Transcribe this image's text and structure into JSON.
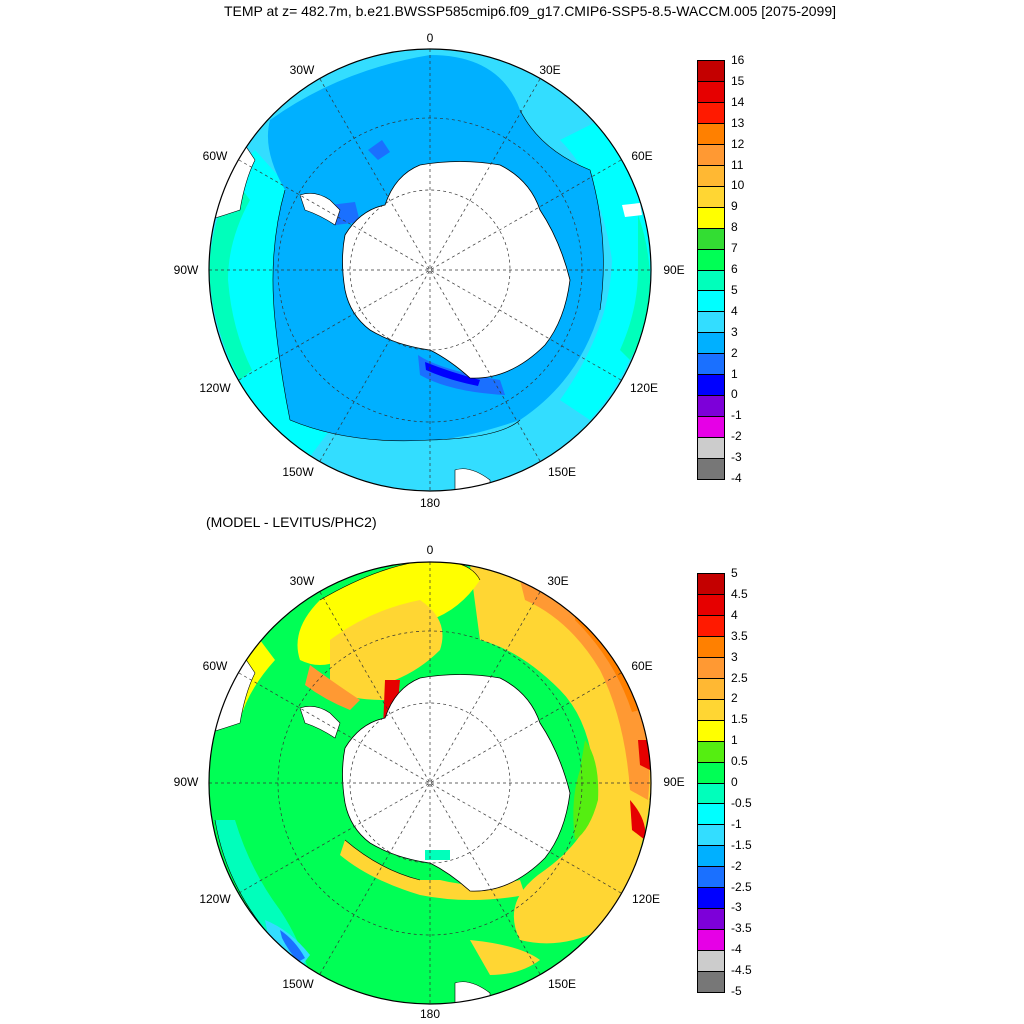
{
  "title": "TEMP at z= 482.7m, b.e21.BWSSP585cmip6.f09_g17.CMIP6-SSP5-8.5-WACCM.005 [2075-2099]",
  "subtitle": "(MODEL - LEVITUS/PHC2)",
  "longitude_labels": [
    "0",
    "30E",
    "60E",
    "90E",
    "120E",
    "150E",
    "180",
    "150W",
    "120W",
    "90W",
    "60W",
    "30W"
  ],
  "top_map": {
    "projection": "south polar stereographic",
    "variable": "TEMP",
    "colorbar_labels": [
      "16",
      "15",
      "14",
      "13",
      "12",
      "11",
      "10",
      "9",
      "8",
      "7",
      "6",
      "5",
      "4",
      "3",
      "2",
      "1",
      "0",
      "-1",
      "-2",
      "-3",
      "-4"
    ],
    "colorbar_colors": [
      "#c40000",
      "#e60000",
      "#ff1a00",
      "#ff8000",
      "#ff9933",
      "#ffb833",
      "#ffd633",
      "#ffff00",
      "#33dd33",
      "#00ff55",
      "#00ffbb",
      "#00ffff",
      "#33ddff",
      "#00b0ff",
      "#1a70ff",
      "#0000ff",
      "#7d00d9",
      "#e600e6",
      "#cccccc",
      "#777777"
    ]
  },
  "bottom_map": {
    "projection": "south polar stereographic",
    "variable": "MODEL - LEVITUS/PHC2",
    "colorbar_labels": [
      "5",
      "4.5",
      "4",
      "3.5",
      "3",
      "2.5",
      "2",
      "1.5",
      "1",
      "0.5",
      "0",
      "-0.5",
      "-1",
      "-1.5",
      "-2",
      "-2.5",
      "-3",
      "-3.5",
      "-4",
      "-4.5",
      "-5"
    ],
    "colorbar_colors": [
      "#c40000",
      "#e60000",
      "#ff1a00",
      "#ff8000",
      "#ff9933",
      "#ffb833",
      "#ffd633",
      "#ffff00",
      "#55ee11",
      "#00ff55",
      "#00ffbb",
      "#00ffff",
      "#33ddff",
      "#00b0ff",
      "#1a70ff",
      "#0000ff",
      "#7d00d9",
      "#e600e6",
      "#cccccc",
      "#777777"
    ]
  }
}
